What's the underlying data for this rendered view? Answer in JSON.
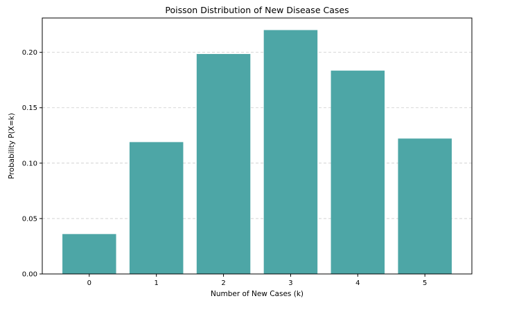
{
  "chart_data": {
    "type": "bar",
    "title": "Poisson Distribution of New Disease Cases",
    "xlabel": "Number of New Cases (k)",
    "ylabel": "Probability P(X=k)",
    "categories": [
      "0",
      "1",
      "2",
      "3",
      "4",
      "5"
    ],
    "values": [
      0.036,
      0.119,
      0.1985,
      0.2201,
      0.1835,
      0.1222
    ],
    "ylim": [
      0,
      0.231
    ],
    "yticks": [
      0.0,
      0.05,
      0.1,
      0.15,
      0.2
    ],
    "ytick_labels": [
      "0.00",
      "0.05",
      "0.10",
      "0.15",
      "0.20"
    ],
    "grid": "y-dashed",
    "legend": "none",
    "colors": {
      "bar": "#4da6a6",
      "grid": "#cccccc",
      "axis": "#000000"
    }
  }
}
